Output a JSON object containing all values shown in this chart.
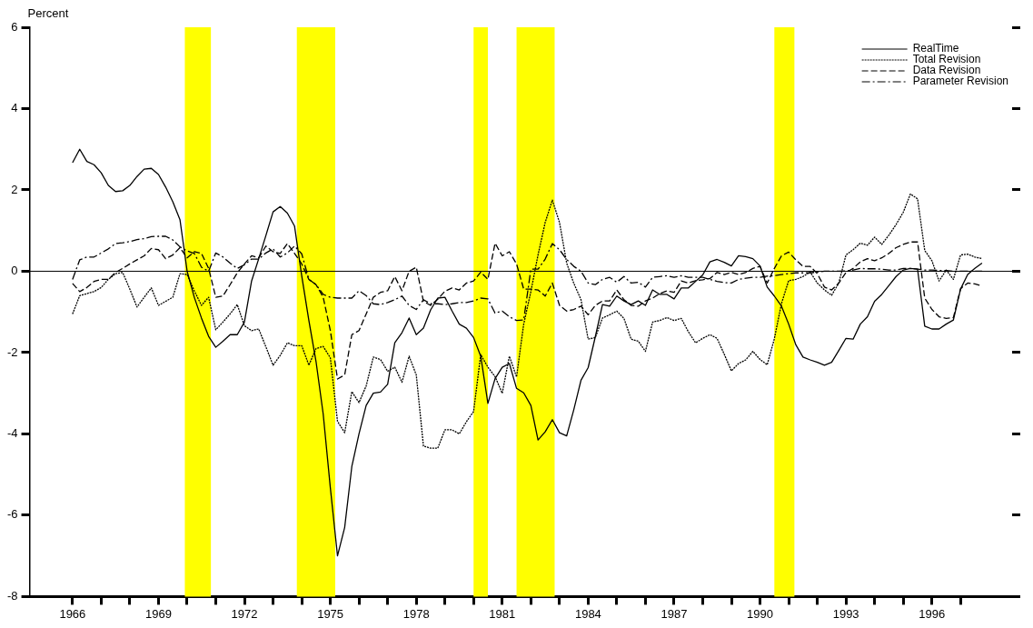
{
  "chart_data": {
    "type": "line",
    "ylabel": "Percent",
    "x": [
      1966,
      1966.25,
      1966.5,
      1966.75,
      1967,
      1967.25,
      1967.5,
      1967.75,
      1968,
      1968.25,
      1968.5,
      1968.75,
      1969,
      1969.25,
      1969.5,
      1969.75,
      1970,
      1970.25,
      1970.5,
      1970.75,
      1971,
      1971.25,
      1971.5,
      1971.75,
      1972,
      1972.25,
      1972.5,
      1972.75,
      1973,
      1973.25,
      1973.5,
      1973.75,
      1974,
      1974.25,
      1974.5,
      1974.75,
      1975,
      1975.25,
      1975.5,
      1975.75,
      1976,
      1976.25,
      1976.5,
      1976.75,
      1977,
      1977.25,
      1977.5,
      1977.75,
      1978,
      1978.25,
      1978.5,
      1978.75,
      1979,
      1979.25,
      1979.5,
      1979.75,
      1980,
      1980.25,
      1980.5,
      1980.75,
      1981,
      1981.25,
      1981.5,
      1981.75,
      1982,
      1982.25,
      1982.5,
      1982.75,
      1983,
      1983.25,
      1983.5,
      1983.75,
      1984,
      1984.25,
      1984.5,
      1984.75,
      1985,
      1985.25,
      1985.5,
      1985.75,
      1986,
      1986.25,
      1986.5,
      1986.75,
      1987,
      1987.25,
      1987.5,
      1987.75,
      1988,
      1988.25,
      1988.5,
      1988.75,
      1989,
      1989.25,
      1989.5,
      1989.75,
      1990,
      1990.25,
      1990.5,
      1990.75,
      1991,
      1991.25,
      1991.5,
      1991.75,
      1992,
      1992.25,
      1992.5,
      1992.75,
      1993,
      1993.25,
      1993.5,
      1993.75,
      1994,
      1994.25,
      1994.5,
      1994.75,
      1995,
      1995.25,
      1995.5,
      1995.75,
      1996,
      1996.25,
      1996.5,
      1996.75,
      1997,
      1997.25,
      1997.5,
      1997.75
    ],
    "xlim": [
      1964.5,
      1998.8
    ],
    "xticks": [
      1966,
      {
        "value": 1967,
        "label": null
      },
      {
        "value": 1968,
        "label": null
      },
      1969,
      {
        "value": 1970,
        "label": null
      },
      {
        "value": 1971,
        "label": null
      },
      1972,
      {
        "value": 1973,
        "label": null
      },
      {
        "value": 1974,
        "label": null
      },
      1975,
      {
        "value": 1976,
        "label": null
      },
      {
        "value": 1977,
        "label": null
      },
      1978,
      {
        "value": 1979,
        "label": null
      },
      {
        "value": 1980,
        "label": null
      },
      1981,
      {
        "value": 1982,
        "label": null
      },
      {
        "value": 1983,
        "label": null
      },
      1984,
      {
        "value": 1985,
        "label": null
      },
      {
        "value": 1986,
        "label": null
      },
      1987,
      {
        "value": 1988,
        "label": null
      },
      {
        "value": 1989,
        "label": null
      },
      1990,
      {
        "value": 1991,
        "label": null
      },
      {
        "value": 1992,
        "label": null
      },
      1993,
      {
        "value": 1994,
        "label": null
      },
      {
        "value": 1995,
        "label": null
      },
      1996,
      {
        "value": 1997,
        "label": null
      }
    ],
    "ylim": [
      -8,
      6
    ],
    "yticks": [
      -8,
      -6,
      -4,
      -2,
      0,
      2,
      4,
      6
    ],
    "legend": "top right",
    "marker": "none",
    "ref_lines": [
      {
        "axis": "y",
        "value": 0,
        "color": "#000000"
      }
    ],
    "bands": [
      {
        "axis": "x",
        "from": 1969.92,
        "to": 1970.83,
        "color": "#ffff00"
      },
      {
        "axis": "x",
        "from": 1973.83,
        "to": 1975.17,
        "color": "#ffff00"
      },
      {
        "axis": "x",
        "from": 1980,
        "to": 1980.5,
        "color": "#ffff00"
      },
      {
        "axis": "x",
        "from": 1981.5,
        "to": 1982.83,
        "color": "#ffff00"
      },
      {
        "axis": "x",
        "from": 1990.5,
        "to": 1991.2,
        "color": "#ffff00"
      }
    ],
    "series": [
      {
        "name": "RealTime",
        "color": "#000000",
        "line_style": "solid",
        "values": [
          2.67,
          3.0,
          2.7,
          2.62,
          2.42,
          2.11,
          1.96,
          1.98,
          2.11,
          2.33,
          2.51,
          2.53,
          2.38,
          2.07,
          1.71,
          1.27,
          0.0,
          -0.64,
          -1.15,
          -1.6,
          -1.87,
          -1.72,
          -1.56,
          -1.56,
          -1.25,
          -0.24,
          0.31,
          0.88,
          1.46,
          1.59,
          1.43,
          1.11,
          -0.11,
          -1.21,
          -2.22,
          -3.51,
          -5.33,
          -7.0,
          -6.3,
          -4.8,
          -4.0,
          -3.3,
          -3.0,
          -2.97,
          -2.78,
          -1.76,
          -1.51,
          -1.15,
          -1.56,
          -1.4,
          -0.95,
          -0.66,
          -0.64,
          -0.98,
          -1.3,
          -1.4,
          -1.63,
          -2.09,
          -3.25,
          -2.64,
          -2.36,
          -2.27,
          -2.88,
          -2.99,
          -3.3,
          -4.15,
          -3.95,
          -3.65,
          -3.97,
          -4.05,
          -3.4,
          -2.68,
          -2.37,
          -1.61,
          -0.82,
          -0.86,
          -0.61,
          -0.73,
          -0.82,
          -0.73,
          -0.84,
          -0.46,
          -0.57,
          -0.57,
          -0.68,
          -0.41,
          -0.41,
          -0.25,
          -0.09,
          0.23,
          0.29,
          0.22,
          0.13,
          0.38,
          0.36,
          0.31,
          0.13,
          -0.39,
          -0.61,
          -0.86,
          -1.3,
          -1.81,
          -2.11,
          -2.18,
          -2.24,
          -2.31,
          -2.24,
          -1.95,
          -1.65,
          -1.67,
          -1.3,
          -1.12,
          -0.74,
          -0.57,
          -0.35,
          -0.13,
          0.03,
          0.07,
          0.05,
          -1.35,
          -1.42,
          -1.42,
          -1.3,
          -1.2,
          -0.44,
          -0.08,
          0.07,
          0.2
        ]
      },
      {
        "name": "Total Revision",
        "color": "#000000",
        "line_style": "dotted",
        "values": [
          -1.05,
          -0.6,
          -0.55,
          -0.5,
          -0.4,
          -0.2,
          -0.06,
          -0.03,
          -0.44,
          -0.88,
          -0.64,
          -0.41,
          -0.84,
          -0.74,
          -0.64,
          -0.06,
          -0.08,
          -0.48,
          -0.84,
          -0.64,
          -1.44,
          -1.25,
          -1.05,
          -0.82,
          -1.34,
          -1.46,
          -1.42,
          -1.86,
          -2.31,
          -2.07,
          -1.76,
          -1.83,
          -1.83,
          -2.31,
          -1.9,
          -1.85,
          -2.13,
          -3.69,
          -3.97,
          -2.96,
          -3.23,
          -2.82,
          -2.11,
          -2.17,
          -2.46,
          -2.36,
          -2.73,
          -2.09,
          -2.55,
          -4.3,
          -4.35,
          -4.35,
          -3.9,
          -3.9,
          -4.0,
          -3.7,
          -3.45,
          -2.05,
          -2.36,
          -2.59,
          -3.0,
          -2.09,
          -2.6,
          -1.3,
          -0.5,
          0.4,
          1.2,
          1.75,
          1.2,
          0.2,
          -0.3,
          -0.7,
          -1.67,
          -1.63,
          -1.15,
          -1.07,
          -0.98,
          -1.16,
          -1.67,
          -1.72,
          -1.97,
          -1.25,
          -1.21,
          -1.14,
          -1.21,
          -1.16,
          -1.49,
          -1.76,
          -1.65,
          -1.56,
          -1.65,
          -2.04,
          -2.45,
          -2.27,
          -2.18,
          -1.97,
          -2.17,
          -2.3,
          -1.66,
          -0.79,
          -0.23,
          -0.2,
          -0.13,
          -0.02,
          -0.29,
          -0.46,
          -0.59,
          -0.29,
          0.4,
          0.53,
          0.69,
          0.64,
          0.84,
          0.66,
          0.89,
          1.15,
          1.45,
          1.9,
          1.78,
          0.51,
          0.26,
          -0.24,
          0.03,
          -0.2,
          0.4,
          0.42,
          0.35,
          0.31
        ]
      },
      {
        "name": "Data Revision",
        "color": "#000000",
        "line_style": "dashed",
        "values": [
          -0.3,
          -0.5,
          -0.4,
          -0.25,
          -0.2,
          -0.2,
          -0.03,
          0.07,
          0.18,
          0.28,
          0.38,
          0.56,
          0.53,
          0.31,
          0.4,
          0.58,
          0.33,
          0.48,
          0.44,
          0.07,
          -0.64,
          -0.61,
          -0.33,
          -0.04,
          0.18,
          0.38,
          0.33,
          0.62,
          0.48,
          0.44,
          0.68,
          0.44,
          0.18,
          -0.2,
          -0.33,
          -0.64,
          -1.46,
          -2.65,
          -2.55,
          -1.56,
          -1.46,
          -1.05,
          -0.64,
          -0.52,
          -0.48,
          -0.13,
          -0.48,
          0.0,
          0.1,
          -0.74,
          -0.84,
          -0.69,
          -0.49,
          -0.41,
          -0.46,
          -0.29,
          -0.24,
          -0.02,
          -0.2,
          0.69,
          0.38,
          0.48,
          0.18,
          -0.44,
          -0.44,
          -0.46,
          -0.61,
          -0.29,
          -0.84,
          -0.98,
          -0.94,
          -0.86,
          -1.07,
          -0.84,
          -0.73,
          -0.73,
          -0.46,
          -0.7,
          -0.84,
          -0.86,
          -0.73,
          -0.66,
          -0.55,
          -0.48,
          -0.52,
          -0.24,
          -0.29,
          -0.23,
          -0.21,
          -0.18,
          -0.03,
          -0.08,
          -0.03,
          -0.08,
          -0.03,
          0.07,
          0.12,
          -0.29,
          0.07,
          0.38,
          0.47,
          0.28,
          0.12,
          0.12,
          -0.06,
          -0.39,
          -0.46,
          -0.29,
          -0.03,
          0.07,
          0.23,
          0.31,
          0.26,
          0.33,
          0.44,
          0.58,
          0.66,
          0.72,
          0.72,
          -0.66,
          -0.94,
          -1.12,
          -1.16,
          -1.14,
          -0.43,
          -0.29,
          -0.31,
          -0.36
        ]
      },
      {
        "name": "Parameter Revision",
        "color": "#000000",
        "line_style": "dashdot",
        "values": [
          -0.2,
          0.28,
          0.35,
          0.35,
          0.45,
          0.55,
          0.68,
          0.7,
          0.73,
          0.78,
          0.8,
          0.85,
          0.86,
          0.86,
          0.77,
          0.6,
          0.5,
          0.44,
          0.1,
          0.0,
          0.45,
          0.35,
          0.2,
          0.07,
          0.16,
          0.3,
          0.3,
          0.45,
          0.55,
          0.35,
          0.45,
          0.62,
          0.43,
          -0.2,
          -0.33,
          -0.57,
          -0.64,
          -0.66,
          -0.66,
          -0.66,
          -0.48,
          -0.6,
          -0.8,
          -0.82,
          -0.77,
          -0.7,
          -0.61,
          -0.84,
          -0.94,
          -0.7,
          -0.8,
          -0.8,
          -0.82,
          -0.8,
          -0.77,
          -0.77,
          -0.73,
          -0.66,
          -0.68,
          -1.03,
          -0.98,
          -1.12,
          -1.21,
          -1.2,
          0.05,
          0.05,
          0.3,
          0.68,
          0.53,
          0.29,
          0.12,
          0.0,
          -0.29,
          -0.33,
          -0.2,
          -0.15,
          -0.27,
          -0.13,
          -0.29,
          -0.27,
          -0.39,
          -0.15,
          -0.13,
          -0.11,
          -0.15,
          -0.11,
          -0.15,
          -0.15,
          -0.15,
          -0.2,
          -0.25,
          -0.28,
          -0.29,
          -0.2,
          -0.17,
          -0.15,
          -0.15,
          -0.12,
          -0.11,
          -0.08,
          -0.06,
          -0.04,
          -0.04,
          -0.04,
          -0.02,
          0.0,
          0.0,
          0.0,
          0.01,
          0.03,
          0.07,
          0.06,
          0.06,
          0.05,
          0.03,
          0.03,
          0.07,
          0.07,
          0.05,
          0.03,
          0.03,
          0.02,
          0.02,
          0.0,
          0.0,
          0.0,
          0.0,
          0.0
        ]
      }
    ]
  }
}
